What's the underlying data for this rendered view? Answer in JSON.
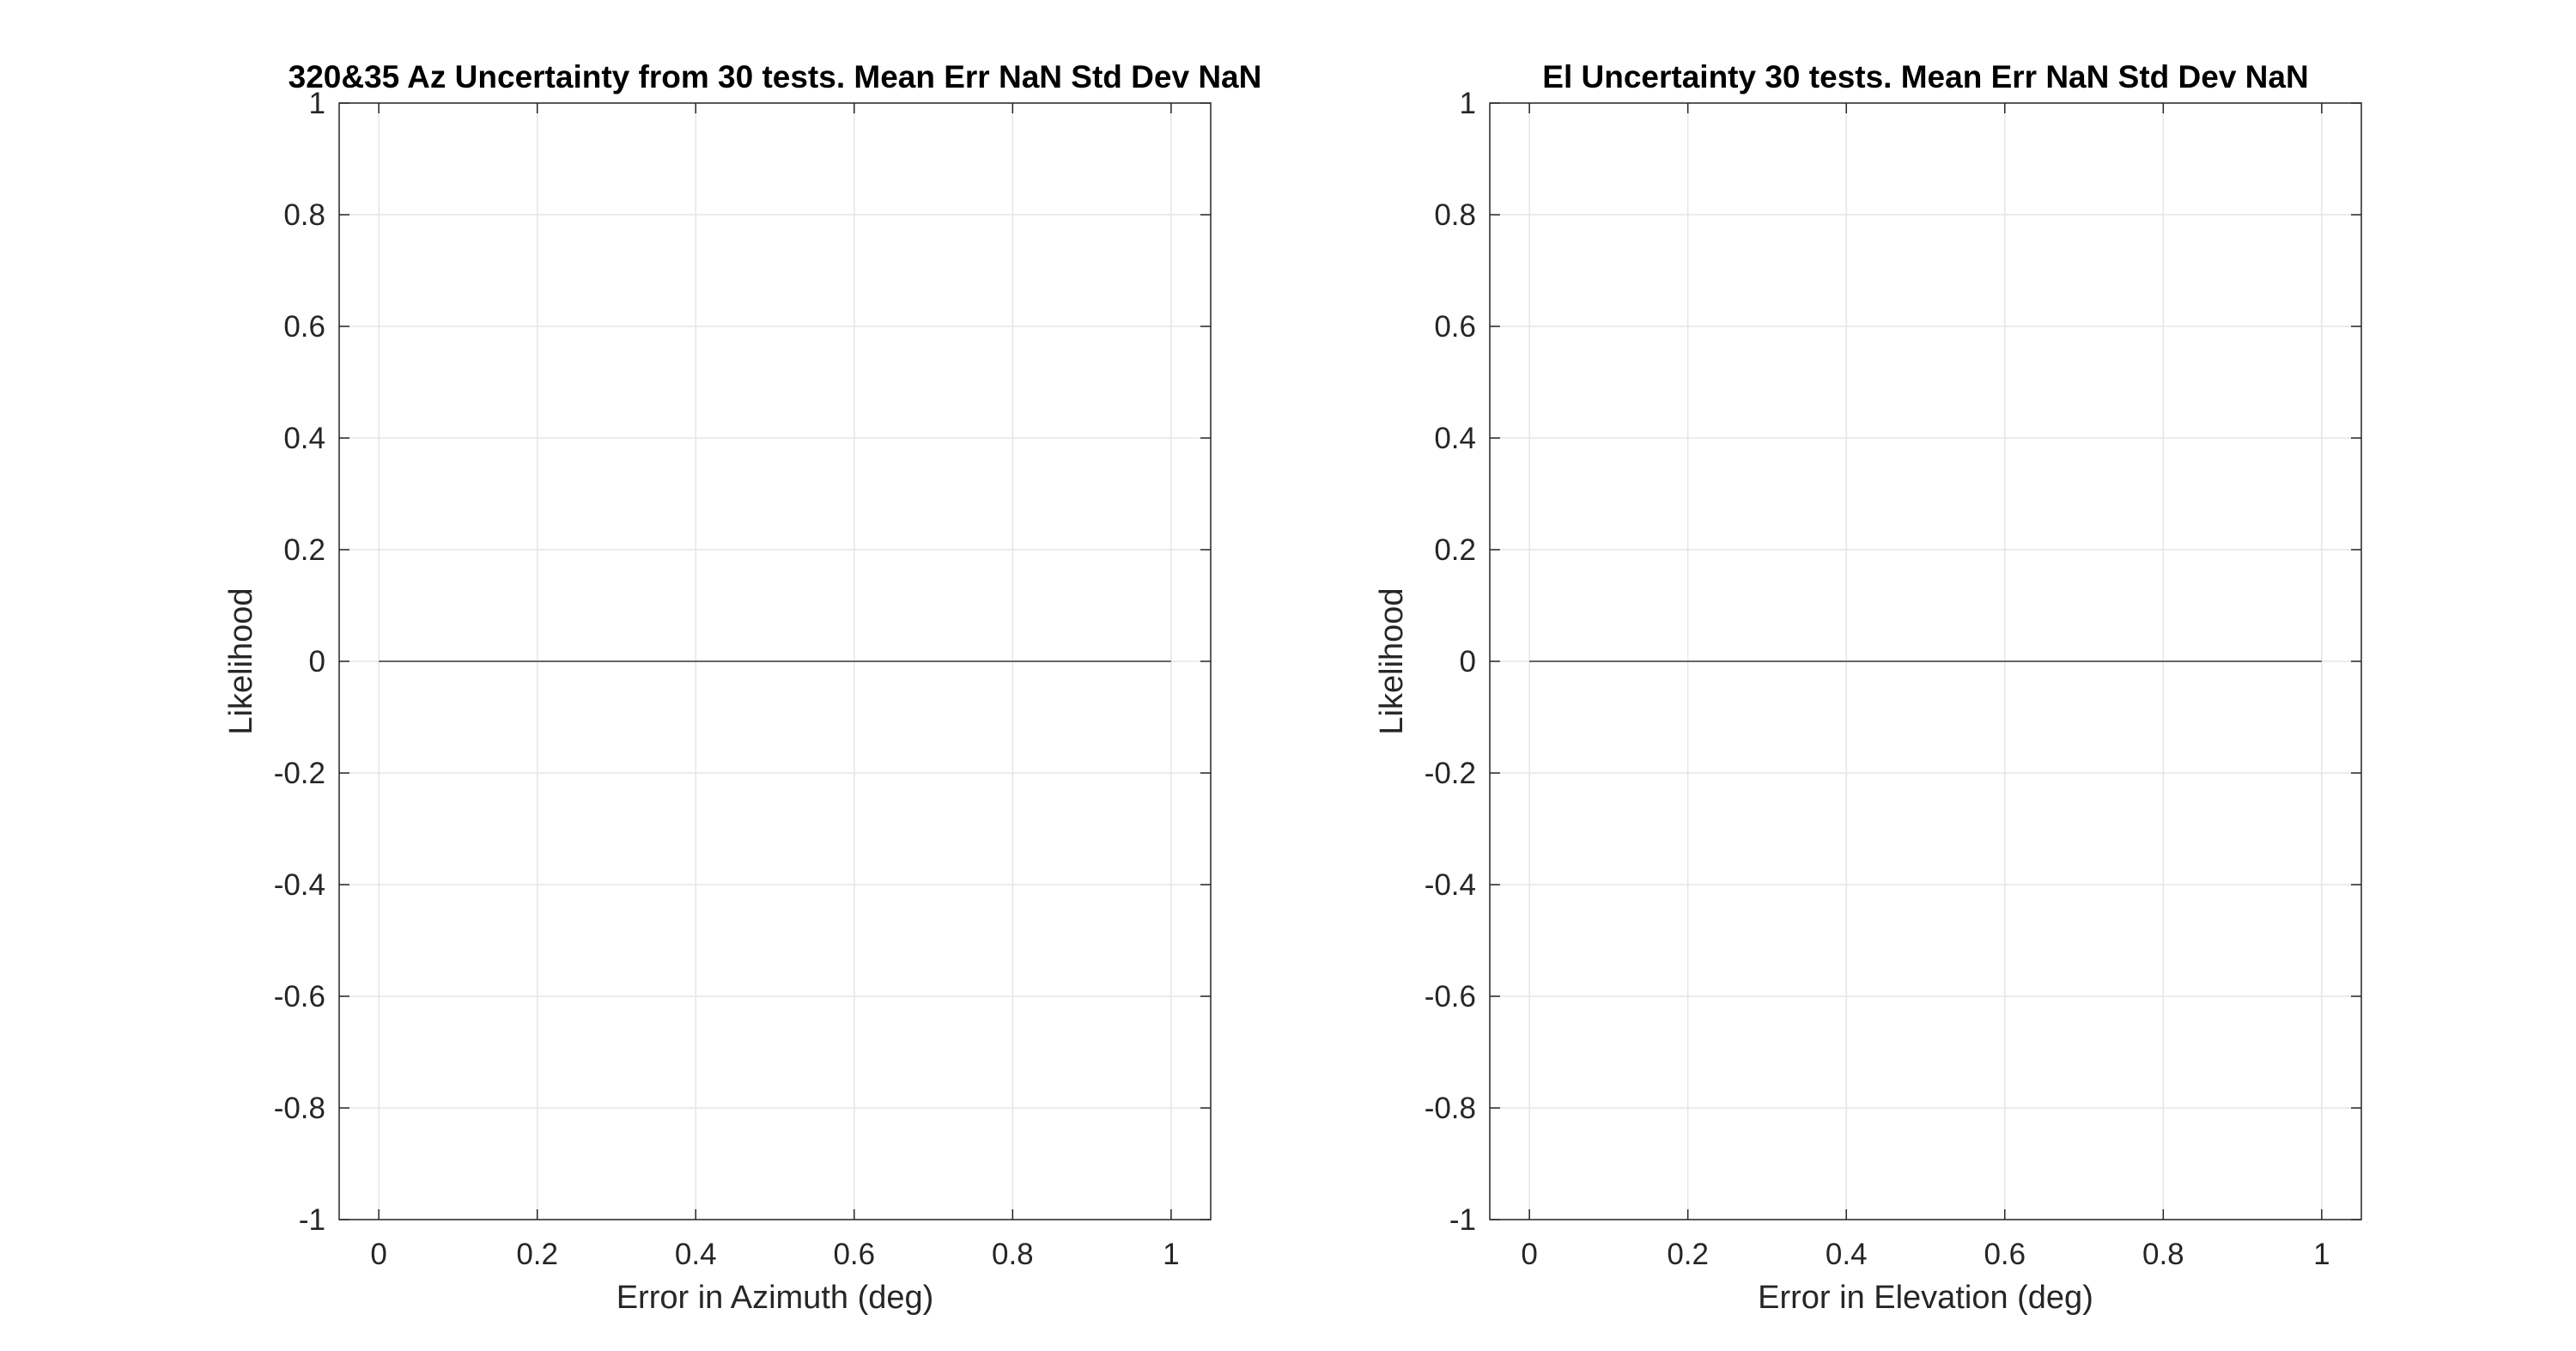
{
  "chart_data": [
    {
      "type": "line",
      "title": "320&35 Az Uncertainty from 30 tests. Mean Err NaN Std Dev NaN",
      "xlabel": "Error in Azimuth (deg)",
      "ylabel": "Likelihood",
      "xlim": [
        -0.05,
        1.05
      ],
      "ylim": [
        -1,
        1
      ],
      "xticks": [
        0,
        0.2,
        0.4,
        0.6,
        0.8,
        1
      ],
      "xtick_labels": [
        "0",
        "0.2",
        "0.4",
        "0.6",
        "0.8",
        "1"
      ],
      "yticks": [
        -1,
        -0.8,
        -0.6,
        -0.4,
        -0.2,
        0,
        0.2,
        0.4,
        0.6,
        0.8,
        1
      ],
      "ytick_labels": [
        "-1",
        "-0.8",
        "-0.6",
        "-0.4",
        "-0.2",
        "0",
        "0.2",
        "0.4",
        "0.6",
        "0.8",
        "1"
      ],
      "grid": true,
      "series": [
        {
          "x": [
            0,
            1
          ],
          "y": [
            0,
            0
          ],
          "color": "#666666"
        }
      ]
    },
    {
      "type": "line",
      "title": "El Uncertainty 30 tests. Mean Err NaN Std Dev NaN",
      "xlabel": "Error in Elevation (deg)",
      "ylabel": "Likelihood",
      "xlim": [
        -0.05,
        1.05
      ],
      "ylim": [
        -1,
        1
      ],
      "xticks": [
        0,
        0.2,
        0.4,
        0.6,
        0.8,
        1
      ],
      "xtick_labels": [
        "0",
        "0.2",
        "0.4",
        "0.6",
        "0.8",
        "1"
      ],
      "yticks": [
        -1,
        -0.8,
        -0.6,
        -0.4,
        -0.2,
        0,
        0.2,
        0.4,
        0.6,
        0.8,
        1
      ],
      "ytick_labels": [
        "-1",
        "-0.8",
        "-0.6",
        "-0.4",
        "-0.2",
        "0",
        "0.2",
        "0.4",
        "0.6",
        "0.8",
        "1"
      ],
      "grid": true,
      "series": [
        {
          "x": [
            0,
            1
          ],
          "y": [
            0,
            0
          ],
          "color": "#666666"
        }
      ]
    }
  ]
}
